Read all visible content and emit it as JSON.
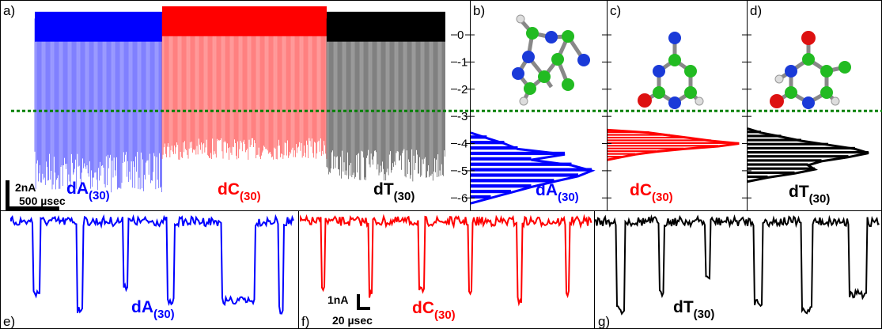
{
  "panels": {
    "a": "a)",
    "b": "b)",
    "c": "c)",
    "d": "d)",
    "e": "e)",
    "f": "f)",
    "g": "g)"
  },
  "colors": {
    "dA": "#0000ff",
    "dC": "#ff0000",
    "dT": "#000000",
    "threshold": "#008000"
  },
  "labels": {
    "a_dA": "dA",
    "a_dC": "dC",
    "a_dT": "dT",
    "b": "dA",
    "c": "dC",
    "d": "dT",
    "e": "dA",
    "f": "dC",
    "g": "dT",
    "sub": "(30)"
  },
  "scalebars": {
    "a_current": "2nA",
    "a_time": "500 µsec",
    "f_current": "1nA",
    "f_time": "20 µsec"
  },
  "chart_data": [
    {
      "panel": "a",
      "type": "line",
      "title": "",
      "xlabel": "",
      "ylabel": "",
      "yticks": [
        0,
        -1,
        -2,
        -3,
        -4,
        -5,
        -6
      ],
      "ylim": [
        -6.4,
        0.7
      ],
      "threshold": -2.8,
      "series": [
        {
          "name": "dA",
          "open_level": 0.3,
          "block_range": [
            -4.3,
            -5.8
          ]
        },
        {
          "name": "dC",
          "open_level": 0.5,
          "block_range": [
            -3.8,
            -4.6
          ]
        },
        {
          "name": "dT",
          "open_level": 0.3,
          "block_range": [
            -4.2,
            -5.4
          ]
        }
      ]
    },
    {
      "panel": "b",
      "type": "bar",
      "orientation": "horizontal",
      "series_name": "dA",
      "bins": [
        -3.8,
        -4.0,
        -4.2,
        -4.4,
        -4.6,
        -4.8,
        -5.0,
        -5.2,
        -5.4,
        -5.6,
        -5.8,
        -6.0
      ],
      "counts": [
        0.12,
        0.25,
        0.35,
        0.7,
        0.45,
        0.75,
        0.9,
        0.8,
        0.62,
        0.45,
        0.3,
        0.15
      ]
    },
    {
      "panel": "c",
      "type": "bar",
      "orientation": "horizontal",
      "series_name": "dC",
      "bins": [
        -3.6,
        -3.7,
        -3.8,
        -3.9,
        -4.0,
        -4.1,
        -4.2,
        -4.3,
        -4.4,
        -4.5
      ],
      "counts": [
        0.3,
        0.45,
        0.6,
        0.75,
        0.95,
        0.8,
        0.55,
        0.35,
        0.2,
        0.1
      ]
    },
    {
      "panel": "d",
      "type": "bar",
      "orientation": "horizontal",
      "series_name": "dT",
      "bins": [
        -3.6,
        -3.75,
        -3.9,
        -4.05,
        -4.2,
        -4.35,
        -4.5,
        -4.65,
        -4.8,
        -4.95,
        -5.1,
        -5.25
      ],
      "counts": [
        0.1,
        0.25,
        0.4,
        0.6,
        0.8,
        0.9,
        0.75,
        0.55,
        0.45,
        0.5,
        0.35,
        0.15
      ]
    }
  ]
}
